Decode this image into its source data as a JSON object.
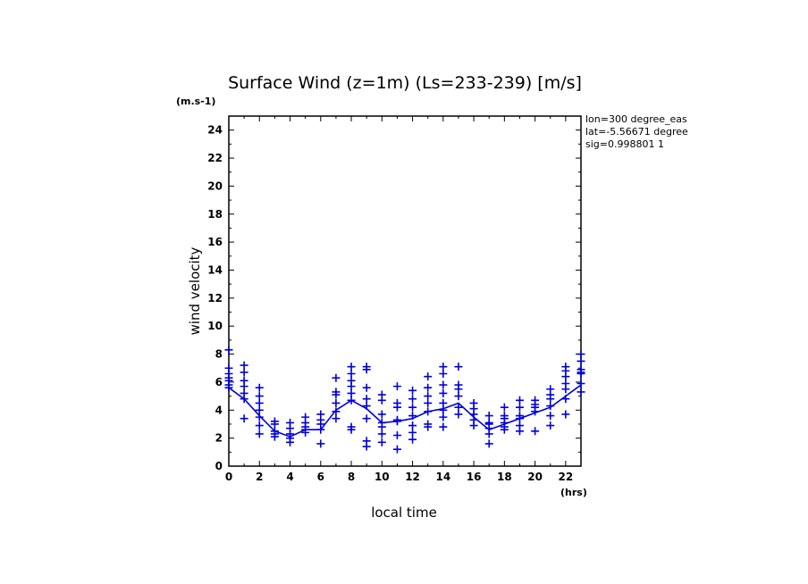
{
  "chart_data": {
    "type": "scatter",
    "title": "Surface Wind (z=1m) (Ls=233-239) [m/s]",
    "xlabel": "local time",
    "ylabel": "wind velocity",
    "y_unit_label": "(m.s-1)",
    "x_unit_label": "(hrs)",
    "xlim": [
      0,
      23
    ],
    "ylim": [
      0,
      25
    ],
    "x_ticks": [
      0,
      2,
      4,
      6,
      8,
      10,
      12,
      14,
      16,
      18,
      20,
      22
    ],
    "y_ticks": [
      0,
      2,
      4,
      6,
      8,
      10,
      12,
      14,
      16,
      18,
      20,
      22,
      24
    ],
    "grid": false,
    "marker_color": "#0000dd",
    "annotations": [
      "lon=300 degree_eas",
      "lat=-5.56671 degree",
      "sig=0.998801 1"
    ],
    "series": [
      {
        "style": "markers",
        "points": [
          [
            0,
            8.3
          ],
          [
            0,
            7.0
          ],
          [
            0,
            6.6
          ],
          [
            0,
            6.3
          ],
          [
            0,
            6.1
          ],
          [
            0,
            5.8
          ],
          [
            0,
            5.6
          ],
          [
            1,
            7.2
          ],
          [
            1,
            6.7
          ],
          [
            1,
            6.1
          ],
          [
            1,
            5.7
          ],
          [
            1,
            5.2
          ],
          [
            1,
            4.8
          ],
          [
            1,
            3.4
          ],
          [
            2,
            5.6
          ],
          [
            2,
            5.0
          ],
          [
            2,
            4.5
          ],
          [
            2,
            4.0
          ],
          [
            2,
            3.5
          ],
          [
            2,
            2.9
          ],
          [
            2,
            2.3
          ],
          [
            3,
            3.2
          ],
          [
            3,
            3.0
          ],
          [
            3,
            2.5
          ],
          [
            3,
            2.3
          ],
          [
            3,
            2.1
          ],
          [
            4,
            3.1
          ],
          [
            4,
            2.7
          ],
          [
            4,
            2.3
          ],
          [
            4,
            2.0
          ],
          [
            4,
            1.7
          ],
          [
            5,
            3.5
          ],
          [
            5,
            3.1
          ],
          [
            5,
            2.8
          ],
          [
            5,
            2.6
          ],
          [
            5,
            2.4
          ],
          [
            6,
            3.7
          ],
          [
            6,
            3.3
          ],
          [
            6,
            3.0
          ],
          [
            6,
            2.6
          ],
          [
            6,
            1.6
          ],
          [
            7,
            6.3
          ],
          [
            7,
            5.3
          ],
          [
            7,
            5.1
          ],
          [
            7,
            4.5
          ],
          [
            7,
            3.9
          ],
          [
            7,
            3.4
          ],
          [
            8,
            7.1
          ],
          [
            8,
            6.6
          ],
          [
            8,
            6.1
          ],
          [
            8,
            5.7
          ],
          [
            8,
            5.2
          ],
          [
            8,
            4.7
          ],
          [
            8,
            2.8
          ],
          [
            8,
            2.6
          ],
          [
            9,
            7.1
          ],
          [
            9,
            6.9
          ],
          [
            9,
            5.6
          ],
          [
            9,
            4.8
          ],
          [
            9,
            4.3
          ],
          [
            9,
            3.4
          ],
          [
            9,
            1.8
          ],
          [
            9,
            1.4
          ],
          [
            10,
            5.1
          ],
          [
            10,
            4.7
          ],
          [
            10,
            3.7
          ],
          [
            10,
            3.1
          ],
          [
            10,
            2.8
          ],
          [
            10,
            2.3
          ],
          [
            10,
            1.7
          ],
          [
            11,
            5.7
          ],
          [
            11,
            4.5
          ],
          [
            11,
            4.2
          ],
          [
            11,
            3.3
          ],
          [
            11,
            3.2
          ],
          [
            11,
            2.2
          ],
          [
            11,
            1.2
          ],
          [
            12,
            5.4
          ],
          [
            12,
            4.8
          ],
          [
            12,
            4.2
          ],
          [
            12,
            3.6
          ],
          [
            12,
            2.9
          ],
          [
            12,
            2.4
          ],
          [
            12,
            1.9
          ],
          [
            13,
            6.4
          ],
          [
            13,
            5.6
          ],
          [
            13,
            5.0
          ],
          [
            13,
            4.5
          ],
          [
            13,
            3.9
          ],
          [
            13,
            3.0
          ],
          [
            13,
            2.8
          ],
          [
            14,
            7.1
          ],
          [
            14,
            6.6
          ],
          [
            14,
            5.8
          ],
          [
            14,
            5.2
          ],
          [
            14,
            4.5
          ],
          [
            14,
            4.0
          ],
          [
            14,
            3.5
          ],
          [
            14,
            2.8
          ],
          [
            15,
            7.1
          ],
          [
            15,
            5.8
          ],
          [
            15,
            5.5
          ],
          [
            15,
            5.0
          ],
          [
            15,
            4.2
          ],
          [
            15,
            3.7
          ],
          [
            16,
            4.5
          ],
          [
            16,
            4.1
          ],
          [
            16,
            3.7
          ],
          [
            16,
            3.3
          ],
          [
            16,
            2.9
          ],
          [
            17,
            3.6
          ],
          [
            17,
            3.1
          ],
          [
            17,
            3.0
          ],
          [
            17,
            2.7
          ],
          [
            17,
            2.3
          ],
          [
            17,
            1.6
          ],
          [
            18,
            4.2
          ],
          [
            18,
            3.6
          ],
          [
            18,
            3.4
          ],
          [
            18,
            3.1
          ],
          [
            18,
            2.8
          ],
          [
            18,
            2.6
          ],
          [
            19,
            4.7
          ],
          [
            19,
            4.2
          ],
          [
            19,
            3.6
          ],
          [
            19,
            3.4
          ],
          [
            19,
            2.9
          ],
          [
            19,
            2.5
          ],
          [
            20,
            4.7
          ],
          [
            20,
            4.4
          ],
          [
            20,
            4.2
          ],
          [
            20,
            3.9
          ],
          [
            20,
            2.5
          ],
          [
            21,
            5.5
          ],
          [
            21,
            5.1
          ],
          [
            21,
            4.8
          ],
          [
            21,
            4.3
          ],
          [
            21,
            3.6
          ],
          [
            21,
            2.9
          ],
          [
            22,
            7.1
          ],
          [
            22,
            6.8
          ],
          [
            22,
            6.4
          ],
          [
            22,
            5.9
          ],
          [
            22,
            5.5
          ],
          [
            22,
            4.8
          ],
          [
            22,
            3.7
          ],
          [
            23,
            8.0
          ],
          [
            23,
            7.5
          ],
          [
            23,
            6.9
          ],
          [
            23,
            6.7
          ],
          [
            23,
            6.6
          ],
          [
            23,
            5.9
          ],
          [
            23,
            5.3
          ]
        ]
      },
      {
        "style": "line",
        "x": [
          0,
          1,
          2,
          3,
          4,
          5,
          6,
          7,
          8,
          9,
          10,
          11,
          12,
          13,
          14,
          15,
          16,
          17,
          18,
          19,
          20,
          21,
          22,
          23
        ],
        "values": [
          5.6,
          4.8,
          3.6,
          2.5,
          2.1,
          2.6,
          2.6,
          4.0,
          4.7,
          4.1,
          3.1,
          3.2,
          3.4,
          3.9,
          4.1,
          4.5,
          3.5,
          2.6,
          3.0,
          3.4,
          3.8,
          4.2,
          5.0,
          5.8
        ]
      }
    ]
  }
}
